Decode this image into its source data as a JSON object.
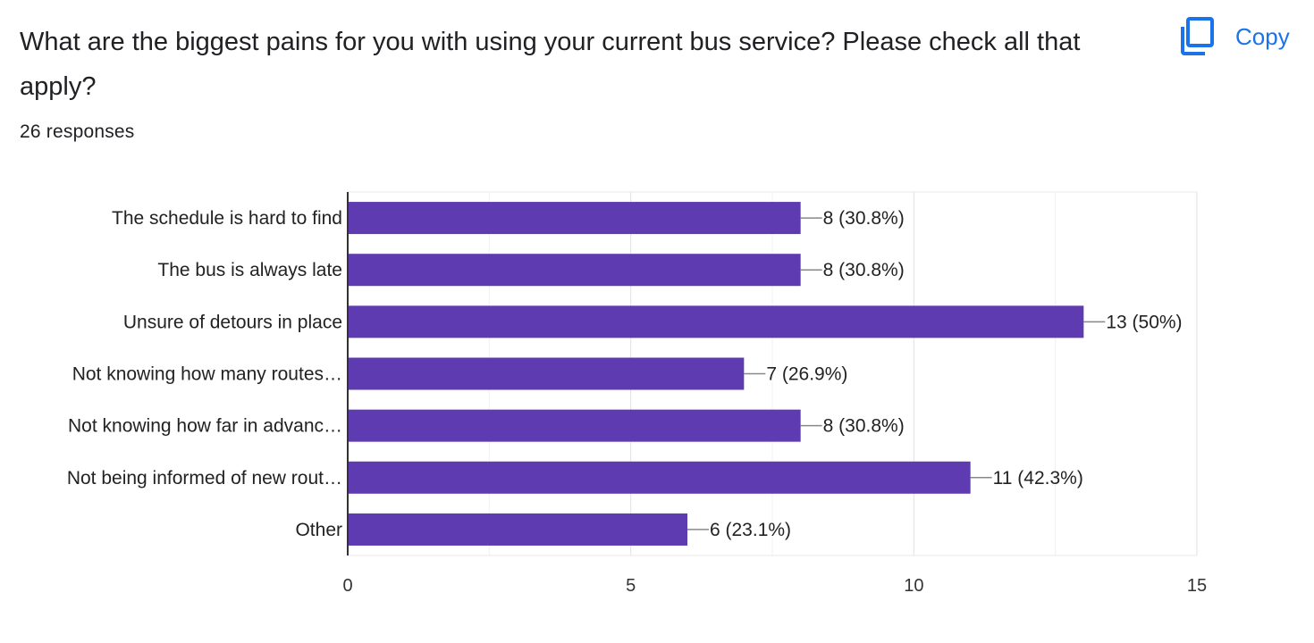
{
  "header": {
    "question": "What are the biggest pains for you with using your current bus service?  Please check all that apply?",
    "responses": "26 responses",
    "copy_label": "Copy",
    "copy_icon": "copy-icon",
    "accent_color": "#1a73e8"
  },
  "chart_data": {
    "type": "bar",
    "orientation": "horizontal",
    "categories": [
      "The schedule is hard to find",
      "The bus is always late",
      "Unsure of detours in place",
      "Not knowing how many routes…",
      "Not knowing how far in advanc…",
      "Not being informed of new rout…",
      "Other"
    ],
    "values": [
      8,
      8,
      13,
      7,
      8,
      11,
      6
    ],
    "data_labels": [
      "8 (30.8%)",
      "8 (30.8%)",
      "13 (50%)",
      "7 (26.9%)",
      "8 (30.8%)",
      "11 (42.3%)",
      "6 (23.1%)"
    ],
    "xlim": [
      0,
      15
    ],
    "xticks": [
      "0",
      "5",
      "10",
      "15"
    ],
    "grid": true,
    "bar_color": "#5e3bb0",
    "title": "",
    "xlabel": "",
    "ylabel": ""
  }
}
